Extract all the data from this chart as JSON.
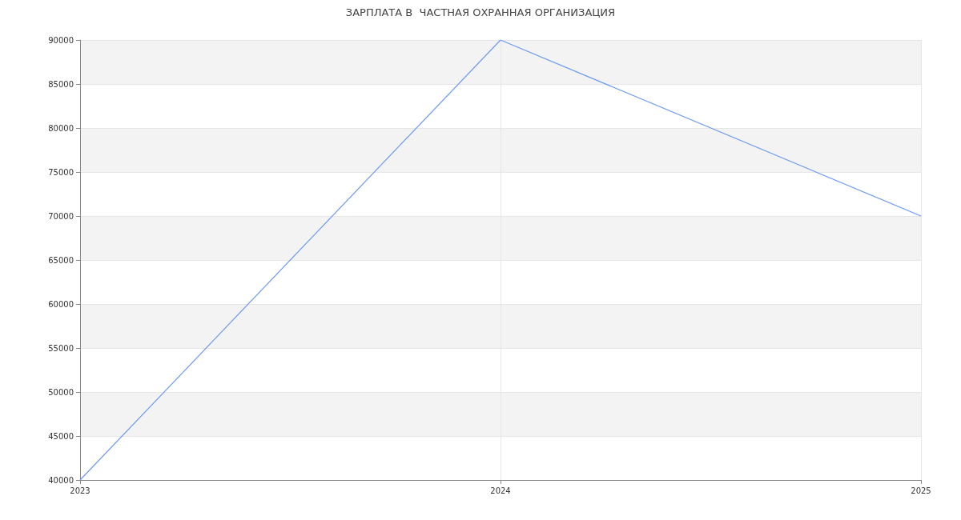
{
  "chart_data": {
    "type": "line",
    "title": "ЗАРПЛАТА В  ЧАСТНАЯ ОХРАННАЯ ОРГАНИЗАЦИЯ",
    "x": [
      2023,
      2024,
      2025
    ],
    "series": [
      {
        "color": "#6d9bf1",
        "values": [
          40000,
          90000,
          70000
        ]
      }
    ],
    "xlim": [
      2023,
      2025
    ],
    "xticks": [
      2023,
      2024,
      2025
    ],
    "ylim": [
      40000,
      90000
    ],
    "yticks": [
      40000,
      45000,
      50000,
      55000,
      60000,
      65000,
      70000,
      75000,
      80000,
      85000,
      90000
    ],
    "grid": true,
    "marker": "none",
    "line_style": "solid"
  }
}
